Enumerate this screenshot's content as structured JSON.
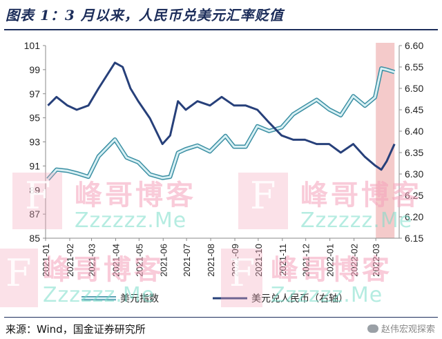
{
  "title": "图表 1：3 月以来，人民币兑美元汇率贬值",
  "source": "来源：Wind，国金证券研究所",
  "corner_label": "赵伟宏观探索",
  "watermark": {
    "cn": "峰哥博客",
    "en": "Zzzzzz.Me",
    "letter": "F"
  },
  "chart_data": {
    "type": "line",
    "x_ticks": [
      "2021-01",
      "2021-02",
      "2021-03",
      "2021-04",
      "2021-05",
      "2021-06",
      "2021-07",
      "2021-08",
      "2021-09",
      "2021-10",
      "2021-11",
      "2021-12",
      "2022-01",
      "2022-02",
      "2022-03"
    ],
    "left_axis": {
      "ylim": [
        85,
        101
      ],
      "ticks": [
        "85",
        "87",
        "89",
        "91",
        "93",
        "95",
        "97",
        "99",
        "101"
      ]
    },
    "right_axis": {
      "ylim": [
        6.15,
        6.6
      ],
      "ticks": [
        "6.15",
        "6.20",
        "6.25",
        "6.30",
        "6.35",
        "6.40",
        "6.45",
        "6.50",
        "6.55",
        "6.60"
      ]
    },
    "highlight_range": [
      "2022-03-01",
      "2022-03-25"
    ],
    "legend_placement": "bottom",
    "colors": {
      "usd_index": "#7fc4d0",
      "cny": "#27407a",
      "highlight": "#f0b8b8"
    },
    "series": [
      {
        "name": "美元指数",
        "axis": "left",
        "points": [
          [
            "2021-01-04",
            89.9
          ],
          [
            "2021-01-15",
            90.7
          ],
          [
            "2021-01-29",
            90.6
          ],
          [
            "2021-02-10",
            90.4
          ],
          [
            "2021-02-25",
            90.1
          ],
          [
            "2021-03-10",
            91.8
          ],
          [
            "2021-03-31",
            93.2
          ],
          [
            "2021-04-15",
            91.7
          ],
          [
            "2021-04-30",
            91.3
          ],
          [
            "2021-05-15",
            90.3
          ],
          [
            "2021-05-31",
            90.0
          ],
          [
            "2021-06-10",
            90.1
          ],
          [
            "2021-06-20",
            92.1
          ],
          [
            "2021-06-30",
            92.4
          ],
          [
            "2021-07-15",
            92.7
          ],
          [
            "2021-07-31",
            92.2
          ],
          [
            "2021-08-20",
            93.5
          ],
          [
            "2021-08-31",
            92.6
          ],
          [
            "2021-09-15",
            92.6
          ],
          [
            "2021-09-30",
            94.3
          ],
          [
            "2021-10-15",
            93.9
          ],
          [
            "2021-10-31",
            94.2
          ],
          [
            "2021-11-15",
            95.3
          ],
          [
            "2021-11-30",
            95.9
          ],
          [
            "2021-12-15",
            96.5
          ],
          [
            "2021-12-31",
            95.7
          ],
          [
            "2022-01-15",
            95.2
          ],
          [
            "2022-01-31",
            96.8
          ],
          [
            "2022-02-15",
            96.0
          ],
          [
            "2022-02-28",
            96.7
          ],
          [
            "2022-03-08",
            99.1
          ],
          [
            "2022-03-15",
            99.0
          ],
          [
            "2022-03-25",
            98.8
          ]
        ]
      },
      {
        "name": "美元兑人民币（右轴）",
        "axis": "right",
        "points": [
          [
            "2021-01-04",
            6.46
          ],
          [
            "2021-01-15",
            6.48
          ],
          [
            "2021-01-29",
            6.46
          ],
          [
            "2021-02-10",
            6.45
          ],
          [
            "2021-02-25",
            6.46
          ],
          [
            "2021-03-10",
            6.5
          ],
          [
            "2021-03-31",
            6.56
          ],
          [
            "2021-04-10",
            6.55
          ],
          [
            "2021-04-20",
            6.5
          ],
          [
            "2021-04-30",
            6.47
          ],
          [
            "2021-05-15",
            6.43
          ],
          [
            "2021-05-31",
            6.37
          ],
          [
            "2021-06-10",
            6.39
          ],
          [
            "2021-06-20",
            6.47
          ],
          [
            "2021-06-30",
            6.45
          ],
          [
            "2021-07-15",
            6.47
          ],
          [
            "2021-07-31",
            6.46
          ],
          [
            "2021-08-15",
            6.48
          ],
          [
            "2021-08-31",
            6.46
          ],
          [
            "2021-09-15",
            6.46
          ],
          [
            "2021-09-30",
            6.45
          ],
          [
            "2021-10-15",
            6.42
          ],
          [
            "2021-10-31",
            6.39
          ],
          [
            "2021-11-15",
            6.38
          ],
          [
            "2021-11-30",
            6.38
          ],
          [
            "2021-12-15",
            6.37
          ],
          [
            "2021-12-31",
            6.37
          ],
          [
            "2022-01-15",
            6.35
          ],
          [
            "2022-01-31",
            6.37
          ],
          [
            "2022-02-15",
            6.34
          ],
          [
            "2022-02-28",
            6.32
          ],
          [
            "2022-03-08",
            6.31
          ],
          [
            "2022-03-15",
            6.33
          ],
          [
            "2022-03-25",
            6.37
          ]
        ]
      }
    ]
  }
}
